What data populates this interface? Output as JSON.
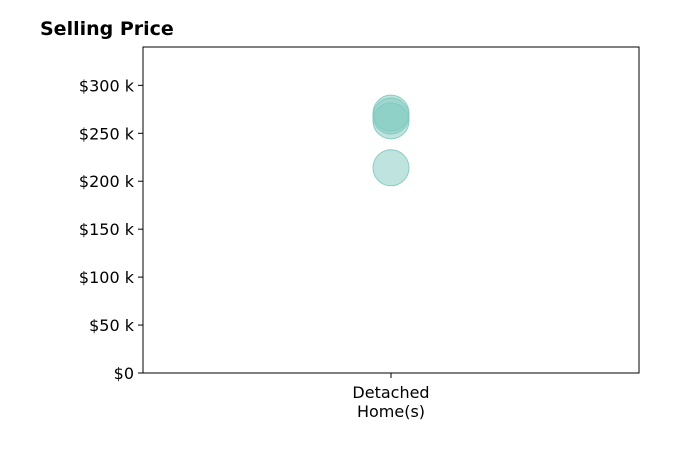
{
  "chart_data": {
    "type": "scatter",
    "title": "Selling Price",
    "xlabel": "",
    "ylabel": "",
    "categories": [
      "Detached\nHome(s)"
    ],
    "ylim": [
      0,
      340000
    ],
    "y_ticks": [
      0,
      50000,
      100000,
      150000,
      200000,
      250000,
      300000
    ],
    "y_tick_labels": [
      "$0",
      "$50 k",
      "$100 k",
      "$150 k",
      "$200 k",
      "$250 k",
      "$300 k"
    ],
    "grid": false,
    "points": [
      {
        "category": "Detached\nHome(s)",
        "y": 271000
      },
      {
        "category": "Detached\nHome(s)",
        "y": 268000
      },
      {
        "category": "Detached\nHome(s)",
        "y": 263000
      },
      {
        "category": "Detached\nHome(s)",
        "y": 214000
      }
    ],
    "marker_color": "#7fc9c0",
    "marker_alpha": 0.5
  }
}
